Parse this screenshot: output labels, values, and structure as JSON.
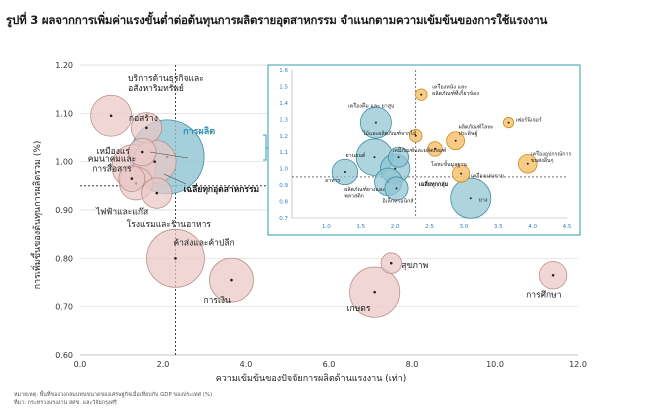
{
  "figure": {
    "title": "รูปที่ 3 ผลจากการเพิ่มค่าแรงขั้นต่ำต่อต้นทุนการผลิตรายอุตสาหกรรม จำแนกตามความเข้มข้นของการใช้แรงงาน",
    "note": "หมายเหตุ: พื้นที่ของวงกลมแทนขนาดของเศรษฐกิจเมื่อเทียบกับ GDP ของประเทศ (%)",
    "source": "ที่มา: กระทรวงแรงงาน สศช. และวิจัยกรุงศรี"
  },
  "colors": {
    "bubble_teal": "#8fc3d1",
    "bubble_teal_stroke": "#3e8fa6",
    "bubble_pink": "#eac8c6",
    "bubble_pink_stroke": "#b9908d",
    "bubble_orange": "#f7c77a",
    "bubble_orange_stroke": "#c98a1c",
    "highlight_label": "#2e8fb0",
    "dashed_line": "#1a1a1a",
    "inset_border": "#2f9cb0",
    "inset_axis_text": "#2f7fbf"
  },
  "chart_data": [
    {
      "type": "scatter",
      "role": "main",
      "title": "",
      "xlabel": "ความเข้มข้นของปัจจัยการผลิตด้านแรงงาน (เท่า)",
      "ylabel": "การเพิ่มขึ้นของต้นทุนการผลิตรวม (%)",
      "xlim": [
        0,
        12
      ],
      "ylim": [
        0.6,
        1.2
      ],
      "xticks": [
        "0.0",
        "2.0",
        "4.0",
        "6.0",
        "8.0",
        "10.0",
        "12.0"
      ],
      "yticks": [
        "0.60",
        "0.70",
        "0.80",
        "0.90",
        "1.00",
        "1.10",
        "1.20"
      ],
      "reference_lines": {
        "x": 2.3,
        "y": 0.95,
        "label": "เฉลี่ยทุกอุตสาหกรรม"
      },
      "points": [
        {
          "label": "บริการด้านธุรกิจและอสังหาริมทรัพย์",
          "x": 0.75,
          "y": 1.095,
          "size": 2.0,
          "color": "pink"
        },
        {
          "label": "ก่อสร้าง",
          "x": 1.6,
          "y": 1.07,
          "size": 1.1,
          "color": "pink"
        },
        {
          "label": "เหมืองแร่",
          "x": 1.5,
          "y": 1.02,
          "size": 0.9,
          "color": "pink"
        },
        {
          "label": "คมนาคมและการสื่อสาร",
          "x": 1.3,
          "y": 0.99,
          "size": 2.3,
          "color": "pink"
        },
        {
          "label": "",
          "x": 1.8,
          "y": 1.0,
          "size": 2.2,
          "color": "pink"
        },
        {
          "label": "",
          "x": 1.25,
          "y": 0.965,
          "size": 0.8,
          "color": "pink"
        },
        {
          "label": "ไฟฟ้าและแก๊ส",
          "x": 1.35,
          "y": 0.955,
          "size": 1.3,
          "color": "pink"
        },
        {
          "label": "โรงแรมและร้านอาหาร",
          "x": 1.85,
          "y": 0.935,
          "size": 1.1,
          "color": "pink"
        },
        {
          "label": "การผลิต",
          "x": 2.1,
          "y": 1.01,
          "size": 6.5,
          "color": "teal"
        },
        {
          "label": "ค้าส่งและค้าปลีก",
          "x": 2.3,
          "y": 0.8,
          "size": 4.0,
          "color": "pink"
        },
        {
          "label": "การเงิน",
          "x": 3.65,
          "y": 0.755,
          "size": 2.3,
          "color": "pink"
        },
        {
          "label": "สุขภาพ",
          "x": 7.5,
          "y": 0.79,
          "size": 0.5,
          "color": "pink"
        },
        {
          "label": "เกษตร",
          "x": 7.1,
          "y": 0.73,
          "size": 3.0,
          "color": "pink"
        },
        {
          "label": "การศึกษา",
          "x": 11.4,
          "y": 0.765,
          "size": 0.9,
          "color": "pink"
        }
      ]
    },
    {
      "type": "scatter",
      "role": "inset",
      "title": "",
      "xlim": [
        0.5,
        4.5
      ],
      "ylim": [
        0.7,
        1.6
      ],
      "xticks": [
        "1.0",
        "1.5",
        "2.0",
        "2.5",
        "3.0",
        "3.5",
        "4.0",
        "4.5"
      ],
      "yticks": [
        "0.7",
        "0.8",
        "0.9",
        "1.0",
        "1.1",
        "1.2",
        "1.3",
        "1.4",
        "1.5",
        "1.6"
      ],
      "reference_lines": {
        "x": 2.3,
        "y": 0.95,
        "label": "เฉลี่ยทุกกลุ่ม"
      },
      "points": [
        {
          "label": "เครื่องหนัง และผลิตภัณฑ์ที่เกี่ยวข้อง",
          "x": 2.38,
          "y": 1.45,
          "size": 0.5,
          "color": "orange"
        },
        {
          "label": "เฟอร์นิเจอร์",
          "x": 3.65,
          "y": 1.28,
          "size": 0.4,
          "color": "orange"
        },
        {
          "label": "เครื่องดื่ม และ ยาสูบ",
          "x": 1.72,
          "y": 1.28,
          "size": 3.6,
          "color": "teal"
        },
        {
          "label": "ไม้และผลิตภัณฑ์จากไม้",
          "x": 2.3,
          "y": 1.2,
          "size": 0.6,
          "color": "orange"
        },
        {
          "label": "ผลิตภัณฑ์โลหะประดิษฐ์",
          "x": 2.88,
          "y": 1.17,
          "size": 1.2,
          "color": "orange"
        },
        {
          "label": "ยานยนต์",
          "x": 1.7,
          "y": 1.07,
          "size": 5.0,
          "color": "teal"
        },
        {
          "label": "เคมีภัณฑ์และผลิตภัณฑ์",
          "x": 2.05,
          "y": 1.07,
          "size": 1.5,
          "color": "teal"
        },
        {
          "label": "เครื่องอุปกรณ์การขนส่งอื่นๆ",
          "x": 3.93,
          "y": 1.03,
          "size": 1.3,
          "color": "orange"
        },
        {
          "label": "โลหะขั้นมูลฐาน",
          "x": 2.58,
          "y": 1.12,
          "size": 0.8,
          "color": "orange"
        },
        {
          "label": "",
          "x": 2.0,
          "y": 1.0,
          "size": 3.2,
          "color": "teal"
        },
        {
          "label": "อาหาร",
          "x": 1.27,
          "y": 0.98,
          "size": 2.4,
          "color": "teal"
        },
        {
          "label": "เครื่องแต่งกาย",
          "x": 2.96,
          "y": 0.97,
          "size": 1.1,
          "color": "orange"
        },
        {
          "label": "ผลิตภัณฑ์ยางและพลาสติก",
          "x": 1.9,
          "y": 0.92,
          "size": 2.8,
          "color": "teal"
        },
        {
          "label": "อิเล็กทรอนิกส์",
          "x": 2.02,
          "y": 0.88,
          "size": 2.0,
          "color": "teal"
        },
        {
          "label": "ยาง",
          "x": 3.1,
          "y": 0.82,
          "size": 6.0,
          "color": "teal"
        }
      ]
    }
  ]
}
